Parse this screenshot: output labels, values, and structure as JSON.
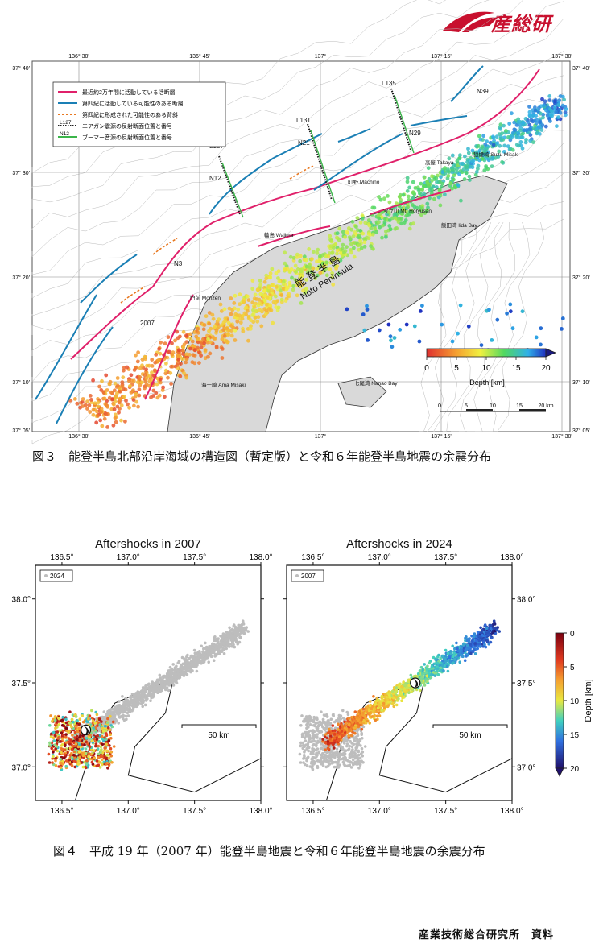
{
  "header": {
    "logo_text": "産総研",
    "colors": {
      "logo_red": "#c8102e"
    }
  },
  "figure3": {
    "top_lon_labels": [
      "136° 30'",
      "136° 45'",
      "137°",
      "137° 15'",
      "137° 30'"
    ],
    "bottom_lon_labels": [
      "136° 30'",
      "136° 45'",
      "137°",
      "137° 15'",
      "137° 30'"
    ],
    "left_lat_labels": [
      "37° 40'",
      "37° 30'",
      "37° 20'",
      "37° 10'",
      "37° 05'"
    ],
    "right_lat_labels": [
      "37° 40'",
      "37° 30'",
      "37° 20'",
      "37° 10'",
      "37° 05'"
    ],
    "legend": [
      {
        "label": "最近約2万年間に活動している活断層",
        "color": "#e0206a",
        "style": "solid"
      },
      {
        "label": "第四紀に活動している可能性のある断層",
        "color": "#1a7fb5",
        "style": "solid"
      },
      {
        "label": "第四紀に形成された可能性のある背斜",
        "color": "#e87820",
        "style": "dashed"
      },
      {
        "label": "エアガン震源の反射断面位置と番号",
        "color": "#222222",
        "style": "dotted",
        "tag": "L127"
      },
      {
        "label": "ブーマー音源の反射断面位置と番号",
        "color": "#3bb54a",
        "style": "solid",
        "tag": "N12"
      }
    ],
    "line_labels": [
      "L127",
      "N12",
      "L131",
      "N21",
      "L135",
      "N29",
      "N39",
      "N3",
      "2007"
    ],
    "place_labels": [
      {
        "jp": "狼煙崎",
        "en": "Suzu Misaki"
      },
      {
        "jp": "高屋",
        "en": "Takaya"
      },
      {
        "jp": "町野",
        "en": "Machino"
      },
      {
        "jp": "宝立山",
        "en": "Mt. Horyusan"
      },
      {
        "jp": "飯田湾",
        "en": "Iida Bay"
      },
      {
        "jp": "輪島",
        "en": "Wajima"
      },
      {
        "jp": "門前",
        "en": "Monzen"
      },
      {
        "jp": "海士崎",
        "en": "Ama Misaki"
      },
      {
        "jp": "七尾湾",
        "en": "Nanao Bay"
      }
    ],
    "peninsula_label_jp": "能 登 半 島",
    "peninsula_label_en": "Noto Peninsula",
    "depth_colorbar": {
      "ticks": [
        "0",
        "5",
        "10",
        "15",
        "20"
      ],
      "label": "Depth [km]"
    },
    "scalebar": {
      "ticks": [
        "0",
        "5",
        "10",
        "15",
        "20 km"
      ]
    }
  },
  "caption3": "図３　能登半島北部沿岸海域の構造図（暫定版）と令和６年能登半島地震の余震分布",
  "figure4": {
    "panels": [
      {
        "title": "Aftershocks in 2007",
        "legend": "2024"
      },
      {
        "title": "Aftershocks in 2024",
        "legend": "2007"
      }
    ],
    "x_ticks": [
      "136.5°",
      "137.0°",
      "137.5°",
      "138.0°"
    ],
    "y_ticks": [
      "38.0°",
      "37.5°",
      "37.0°"
    ],
    "scalebar_label": "50 km",
    "colorbar": {
      "ticks": [
        "0",
        "5",
        "10",
        "15",
        "20"
      ],
      "label": "Depth [km]"
    }
  },
  "caption4": "図４　平成 19 年（2007 年）能登半島地震と令和６年能登半島地震の余震分布",
  "footer": "産業技術総合研究所　資料"
}
